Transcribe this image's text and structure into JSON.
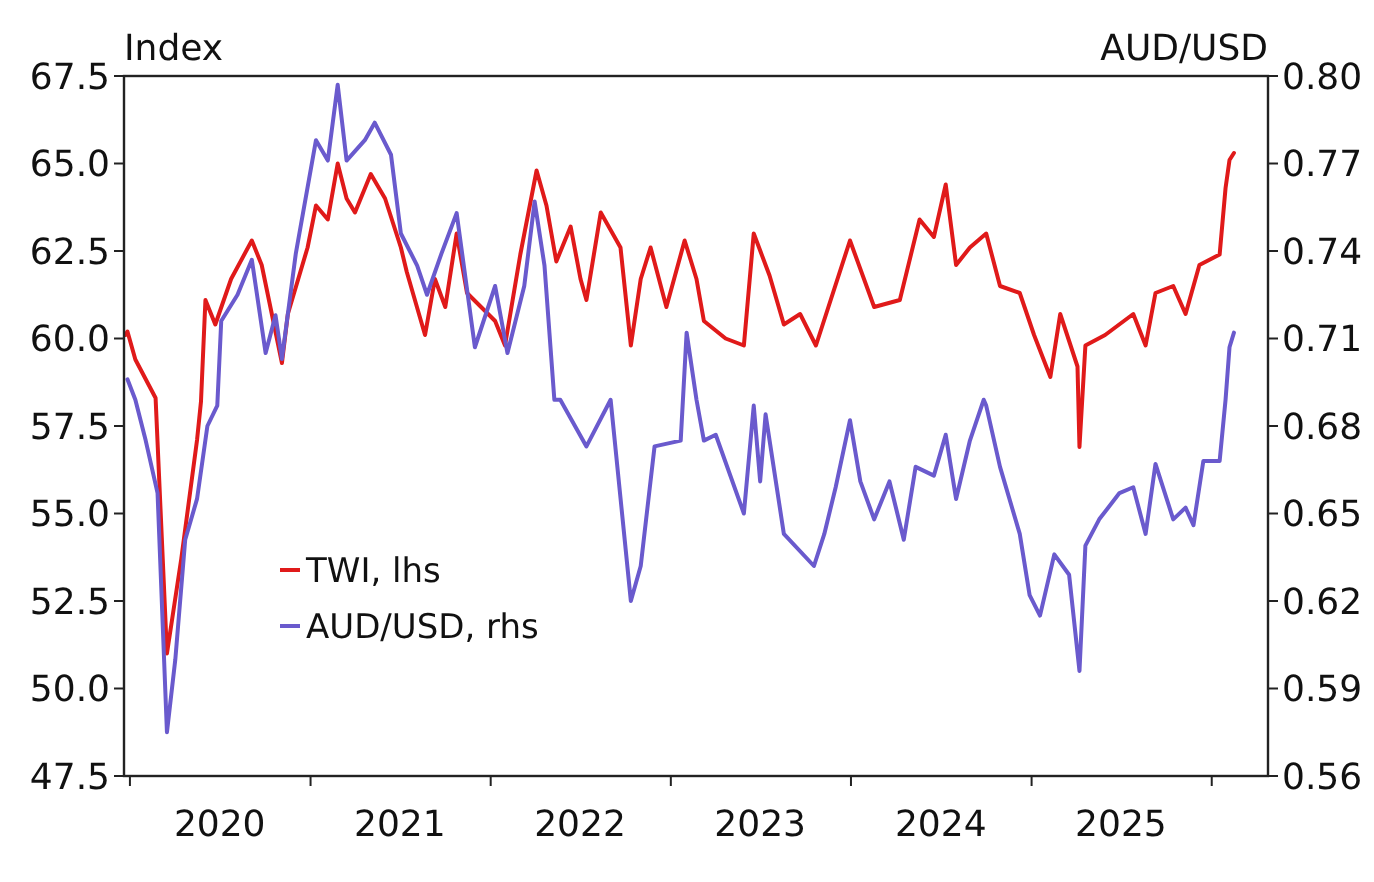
{
  "chart_data": {
    "type": "line",
    "ylabel": "Index",
    "y2label": "AUD/USD",
    "legend": "bottom left",
    "grid": false,
    "line_style": "solid",
    "marker": "none",
    "xlim": [
      "2019-12-20",
      "2026-04-25"
    ],
    "xticks": [
      {
        "value": "2020-01-01",
        "label": null
      },
      {
        "value": "2020-07-01",
        "label": "2020"
      },
      {
        "value": "2021-01-01",
        "label": null
      },
      {
        "value": "2021-07-01",
        "label": "2021"
      },
      {
        "value": "2022-01-01",
        "label": null
      },
      {
        "value": "2022-07-01",
        "label": "2022"
      },
      {
        "value": "2023-01-01",
        "label": null
      },
      {
        "value": "2023-07-01",
        "label": "2023"
      },
      {
        "value": "2024-01-01",
        "label": null
      },
      {
        "value": "2024-07-01",
        "label": "2024"
      },
      {
        "value": "2025-01-01",
        "label": null
      },
      {
        "value": "2025-07-01",
        "label": "2025"
      },
      {
        "value": "2026-01-01",
        "label": null
      }
    ],
    "ylim": [
      47.5,
      67.5
    ],
    "yticks": [
      47.5,
      {
        "value": 50,
        "label": "50.0"
      },
      52.5,
      {
        "value": 55,
        "label": "55.0"
      },
      57.5,
      {
        "value": 60,
        "label": "60.0"
      },
      62.5,
      {
        "value": 65,
        "label": "65.0"
      },
      67.5
    ],
    "y2lim": [
      0.56,
      0.8
    ],
    "y2ticks": [
      0.56,
      0.59,
      0.62,
      0.65,
      0.68,
      0.71,
      0.74,
      0.77,
      {
        "value": 0.8,
        "label": "0.80"
      }
    ],
    "series": [
      {
        "name": "TWI, lhs",
        "color": "#e01a1a",
        "x": [
          "2019-12-23",
          "2019-12-27",
          "2020-01-12",
          "2020-02-22",
          "2020-03-16",
          "2020-04-14",
          "2020-05-16",
          "2020-05-24",
          "2020-06-02",
          "2020-06-22",
          "2020-07-24",
          "2020-09-04",
          "2020-09-24",
          "2020-11-04",
          "2020-11-16",
          "2020-12-26",
          "2021-01-12",
          "2021-02-05",
          "2021-02-25",
          "2021-03-15",
          "2021-04-01",
          "2021-05-03",
          "2021-06-01",
          "2021-07-03",
          "2021-07-15",
          "2021-08-21",
          "2021-09-10",
          "2021-10-01",
          "2021-10-24",
          "2021-11-14",
          "2022-01-10",
          "2022-01-30",
          "2022-03-02",
          "2022-04-04",
          "2022-04-24",
          "2022-05-14",
          "2022-06-12",
          "2022-07-02",
          "2022-07-14",
          "2022-08-12",
          "2022-09-21",
          "2022-10-12",
          "2022-11-01",
          "2022-11-21",
          "2022-12-23",
          "2023-01-29",
          "2023-02-22",
          "2023-03-09",
          "2023-04-22",
          "2023-05-29",
          "2023-06-18",
          "2023-07-20",
          "2023-08-18",
          "2023-09-20",
          "2023-10-22",
          "2023-12-30",
          "2024-02-17",
          "2024-04-09",
          "2024-05-19",
          "2024-06-17",
          "2024-07-11",
          "2024-08-01",
          "2024-08-29",
          "2024-10-01",
          "2024-10-29",
          "2024-12-08",
          "2025-01-06",
          "2025-02-08",
          "2025-02-28",
          "2025-04-04",
          "2025-04-08",
          "2025-04-20",
          "2025-05-30",
          "2025-07-26",
          "2025-08-20",
          "2025-09-09",
          "2025-10-15",
          "2025-11-09",
          "2025-12-07",
          "2026-01-17",
          "2026-01-29",
          "2026-02-06",
          "2026-02-15"
        ],
        "values": [
          60.1,
          60.2,
          59.4,
          58.3,
          51.0,
          53.7,
          57.1,
          58.2,
          61.1,
          60.4,
          61.7,
          62.8,
          62.1,
          59.3,
          60.7,
          62.6,
          63.8,
          63.4,
          65.0,
          64.0,
          63.6,
          64.7,
          64.0,
          62.6,
          61.9,
          60.1,
          61.7,
          60.9,
          63.0,
          61.3,
          60.5,
          59.8,
          62.4,
          64.8,
          63.8,
          62.2,
          63.2,
          61.7,
          61.1,
          63.6,
          62.6,
          59.8,
          61.7,
          62.6,
          60.9,
          62.8,
          61.7,
          60.5,
          60.0,
          59.8,
          63.0,
          61.8,
          60.4,
          60.7,
          59.8,
          62.8,
          60.9,
          61.1,
          63.4,
          62.9,
          64.4,
          62.1,
          62.6,
          63.0,
          61.5,
          61.3,
          60.1,
          58.9,
          60.7,
          59.2,
          56.9,
          59.8,
          60.1,
          60.7,
          59.8,
          61.3,
          61.5,
          60.7,
          62.1,
          62.4,
          64.3,
          65.1,
          65.3
        ]
      },
      {
        "name": "AUD/USD, rhs",
        "color": "#6a5acd",
        "axis": "y2",
        "x": [
          "2019-12-27",
          "2020-01-12",
          "2020-02-02",
          "2020-02-26",
          "2020-03-16",
          "2020-04-02",
          "2020-04-22",
          "2020-05-16",
          "2020-06-06",
          "2020-06-26",
          "2020-07-04",
          "2020-08-06",
          "2020-09-04",
          "2020-10-02",
          "2020-10-22",
          "2020-11-04",
          "2020-12-02",
          "2021-01-12",
          "2021-02-05",
          "2021-02-25",
          "2021-03-15",
          "2021-04-21",
          "2021-05-11",
          "2021-06-13",
          "2021-07-03",
          "2021-08-05",
          "2021-08-25",
          "2021-09-23",
          "2021-10-24",
          "2021-11-30",
          "2022-01-10",
          "2022-02-04",
          "2022-03-10",
          "2022-03-31",
          "2022-04-20",
          "2022-05-10",
          "2022-05-22",
          "2022-07-14",
          "2022-09-01",
          "2022-10-12",
          "2022-11-01",
          "2022-11-29",
          "2023-01-21",
          "2023-02-02",
          "2023-02-22",
          "2023-03-09",
          "2023-04-02",
          "2023-05-29",
          "2023-06-18",
          "2023-07-01",
          "2023-07-12",
          "2023-08-18",
          "2023-10-18",
          "2023-11-08",
          "2023-12-01",
          "2023-12-30",
          "2024-01-20",
          "2024-02-17",
          "2024-03-19",
          "2024-04-17",
          "2024-05-11",
          "2024-06-17",
          "2024-07-11",
          "2024-08-01",
          "2024-08-29",
          "2024-09-26",
          "2024-10-01",
          "2024-10-29",
          "2024-12-08",
          "2024-12-28",
          "2025-01-18",
          "2025-02-16",
          "2025-03-18",
          "2025-04-08",
          "2025-04-20",
          "2025-05-18",
          "2025-06-28",
          "2025-07-26",
          "2025-08-20",
          "2025-09-09",
          "2025-10-15",
          "2025-11-09",
          "2025-11-25",
          "2025-12-15",
          "2026-01-17",
          "2026-01-29",
          "2026-02-06",
          "2026-02-15"
        ],
        "values": [
          0.696,
          0.689,
          0.675,
          0.657,
          0.575,
          0.6,
          0.641,
          0.655,
          0.68,
          0.687,
          0.716,
          0.725,
          0.737,
          0.705,
          0.718,
          0.703,
          0.739,
          0.778,
          0.771,
          0.797,
          0.771,
          0.778,
          0.784,
          0.773,
          0.746,
          0.735,
          0.725,
          0.739,
          0.753,
          0.707,
          0.728,
          0.705,
          0.728,
          0.757,
          0.735,
          0.689,
          0.689,
          0.673,
          0.689,
          0.62,
          0.632,
          0.673,
          0.675,
          0.712,
          0.689,
          0.675,
          0.677,
          0.65,
          0.687,
          0.661,
          0.684,
          0.643,
          0.632,
          0.643,
          0.659,
          0.682,
          0.661,
          0.648,
          0.661,
          0.641,
          0.666,
          0.663,
          0.677,
          0.655,
          0.675,
          0.689,
          0.687,
          0.666,
          0.643,
          0.622,
          0.615,
          0.636,
          0.629,
          0.596,
          0.639,
          0.648,
          0.657,
          0.659,
          0.643,
          0.667,
          0.648,
          0.652,
          0.646,
          0.668,
          0.668,
          0.689,
          0.707,
          0.712
        ]
      }
    ]
  }
}
